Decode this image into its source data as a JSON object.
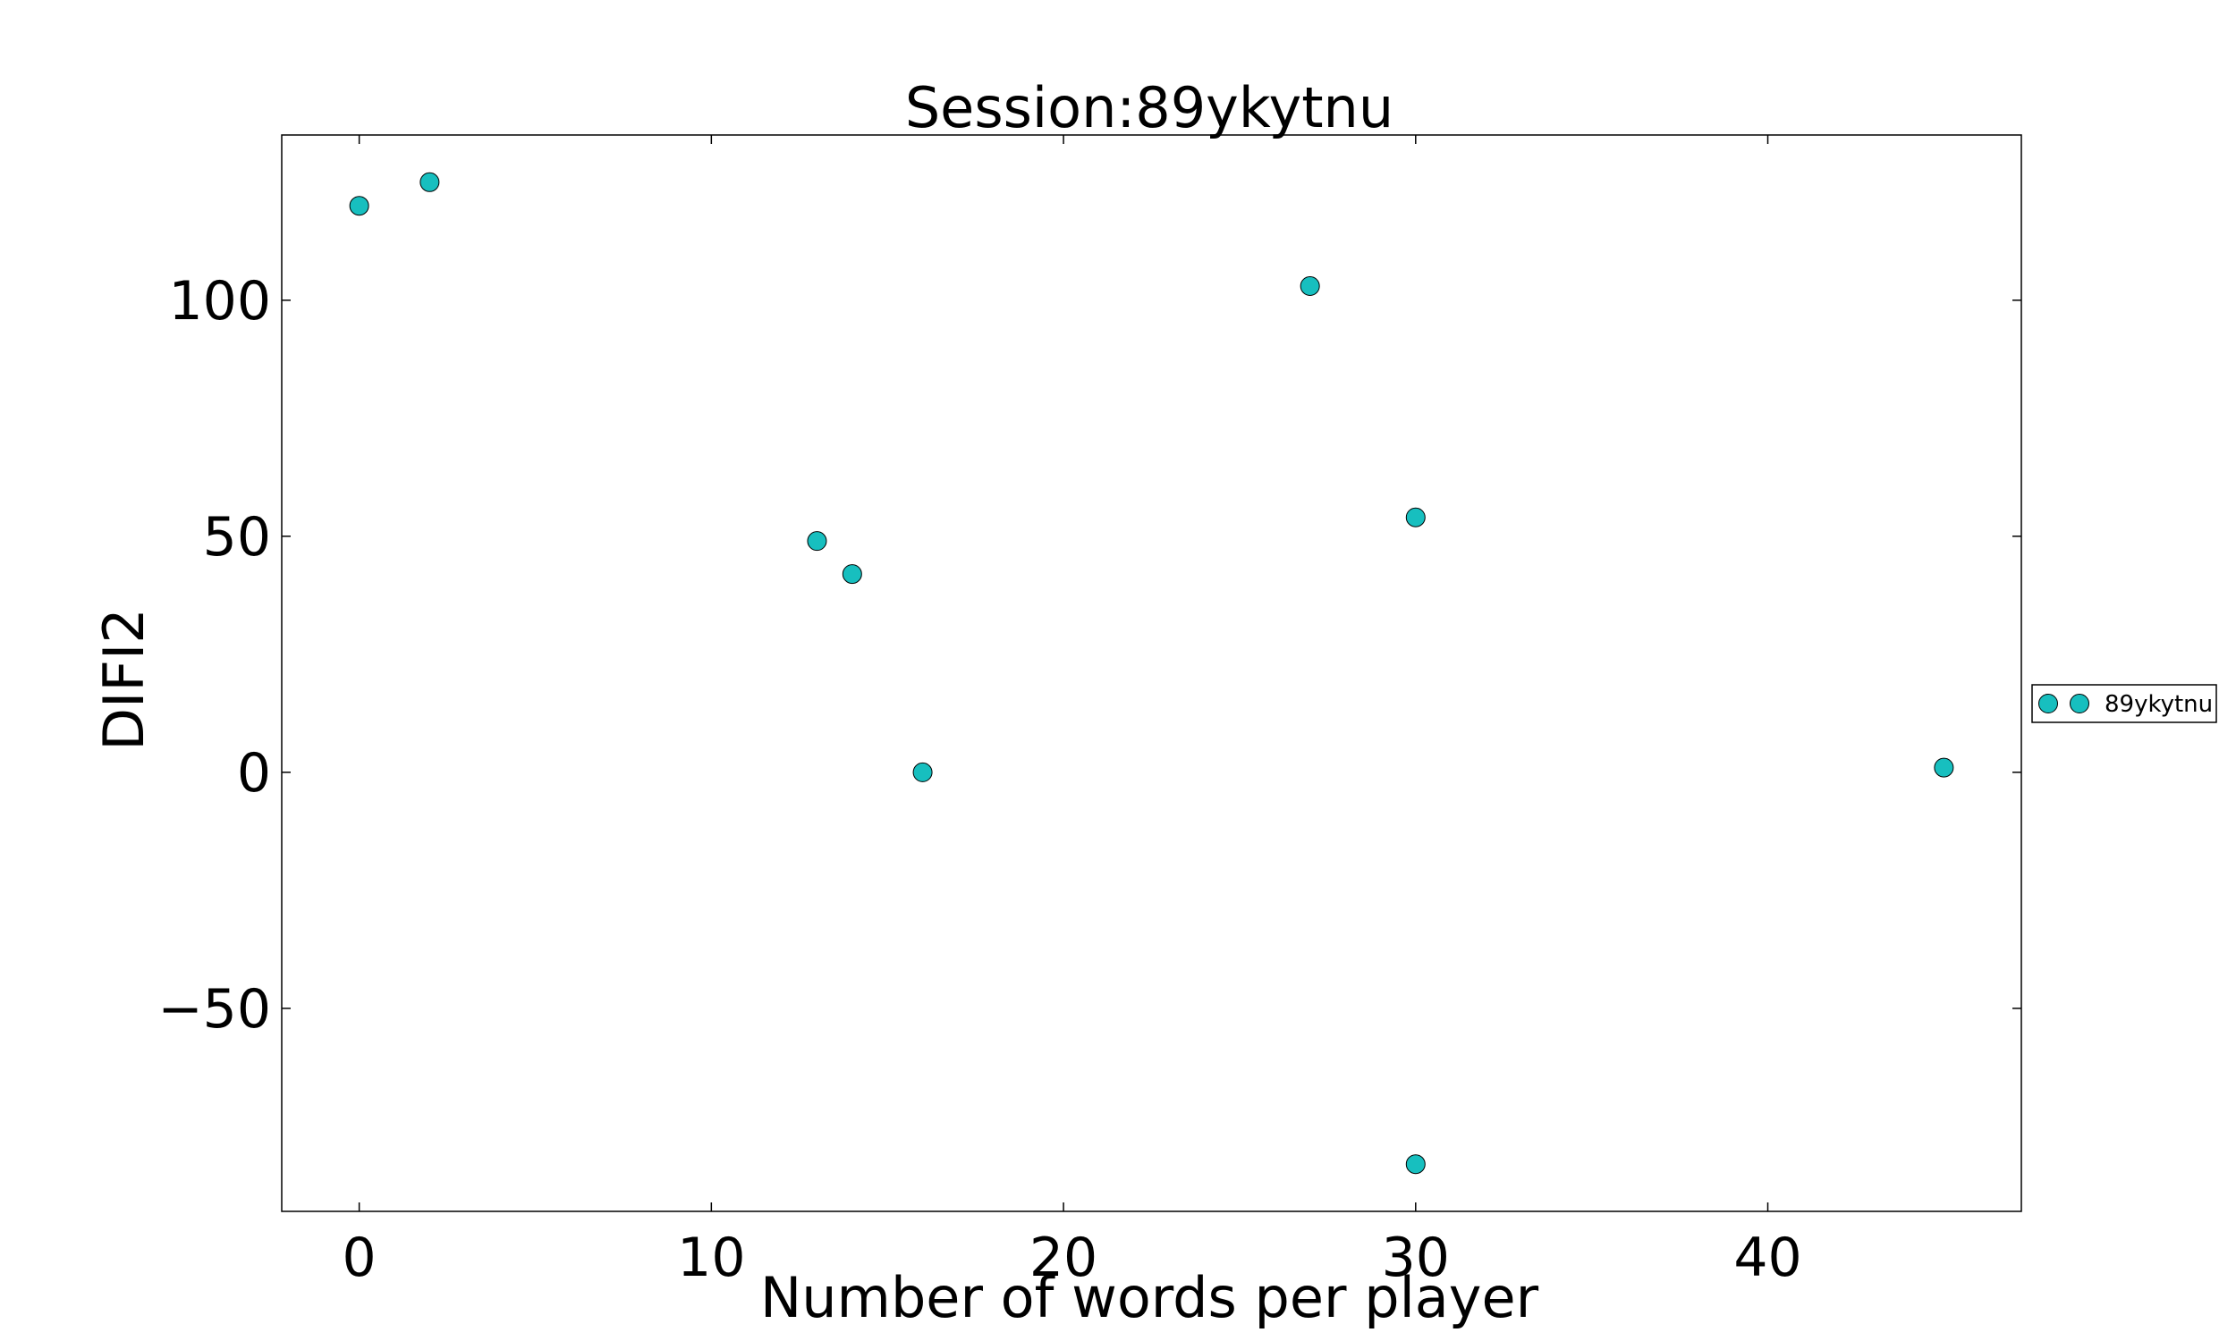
{
  "chart_data": {
    "type": "scatter",
    "title": "Session:89ykytnu",
    "xlabel": "Number of words per player",
    "ylabel": "DIFI2",
    "xlim": [
      -2.2,
      47.2
    ],
    "ylim": [
      -93,
      135
    ],
    "xticks": [
      0,
      10,
      20,
      30,
      40
    ],
    "yticks": [
      -50,
      0,
      50,
      100
    ],
    "xtick_labels": [
      "0",
      "10",
      "20",
      "30",
      "40"
    ],
    "ytick_labels": [
      "−50",
      "0",
      "50",
      "100"
    ],
    "grid": false,
    "legend": {
      "position": "outside-right",
      "entries": [
        "89ykytnu"
      ]
    },
    "series": [
      {
        "name": "89ykytnu",
        "color": "#17bfbf",
        "points": [
          {
            "x": 0,
            "y": 120
          },
          {
            "x": 2,
            "y": 125
          },
          {
            "x": 13,
            "y": 49
          },
          {
            "x": 14,
            "y": 42
          },
          {
            "x": 16,
            "y": 0
          },
          {
            "x": 27,
            "y": 103
          },
          {
            "x": 30,
            "y": 54
          },
          {
            "x": 30,
            "y": -83
          },
          {
            "x": 45,
            "y": 1
          }
        ]
      }
    ]
  }
}
